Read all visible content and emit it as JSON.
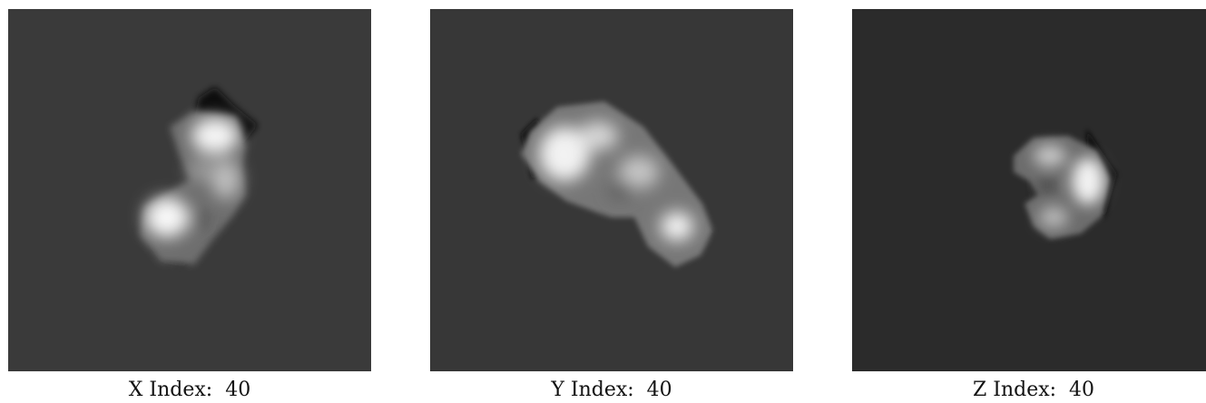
{
  "panels": [
    {
      "axis": "X",
      "index": 40,
      "caption": "X Index:  40",
      "background": "#3a3a3a"
    },
    {
      "axis": "Y",
      "index": 40,
      "caption": "Y Index:  40",
      "background": "#373737"
    },
    {
      "axis": "Z",
      "index": 40,
      "caption": "Z Index:  40",
      "background": "#2b2b2b"
    }
  ]
}
